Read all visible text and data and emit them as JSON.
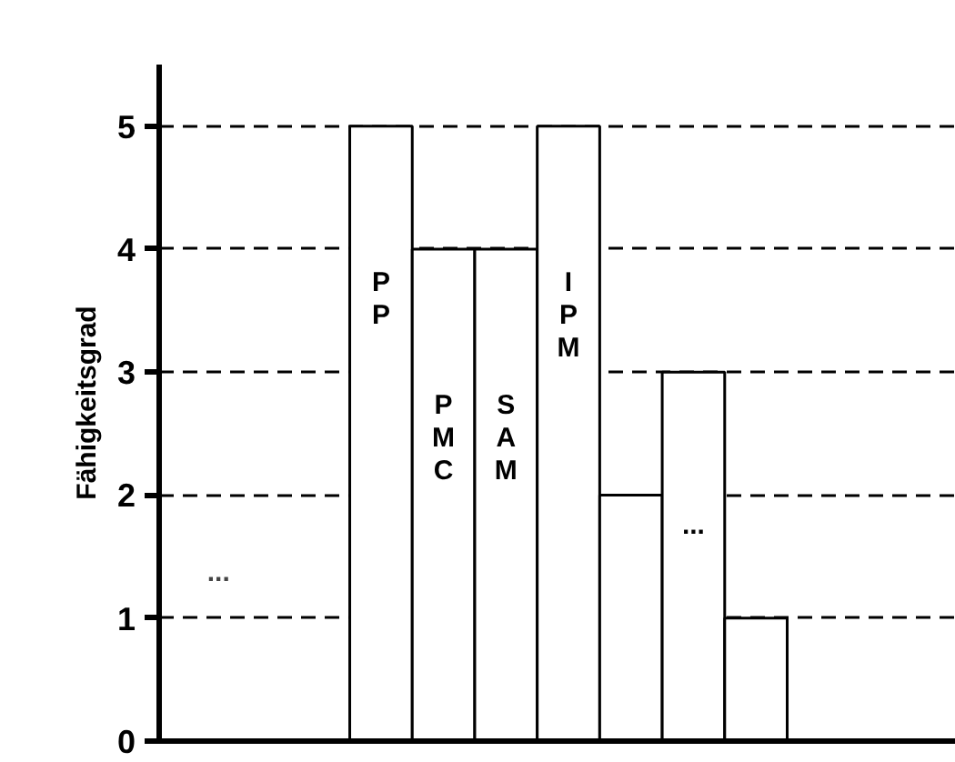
{
  "chart_data": {
    "type": "bar",
    "ylabel": "Fähigkeitsgrad",
    "categories": [
      null,
      "PP",
      "PMC",
      "SAM",
      "IPM",
      null,
      "...",
      null
    ],
    "values": [
      null,
      5,
      4,
      4,
      5,
      2,
      3,
      1
    ],
    "color": "#ffffff",
    "ylim": [
      0,
      5.5
    ],
    "yticks": [
      0,
      1,
      2,
      3,
      4,
      5
    ],
    "grid": "y",
    "tick_labels": "y",
    "annotations": [
      "..."
    ]
  }
}
